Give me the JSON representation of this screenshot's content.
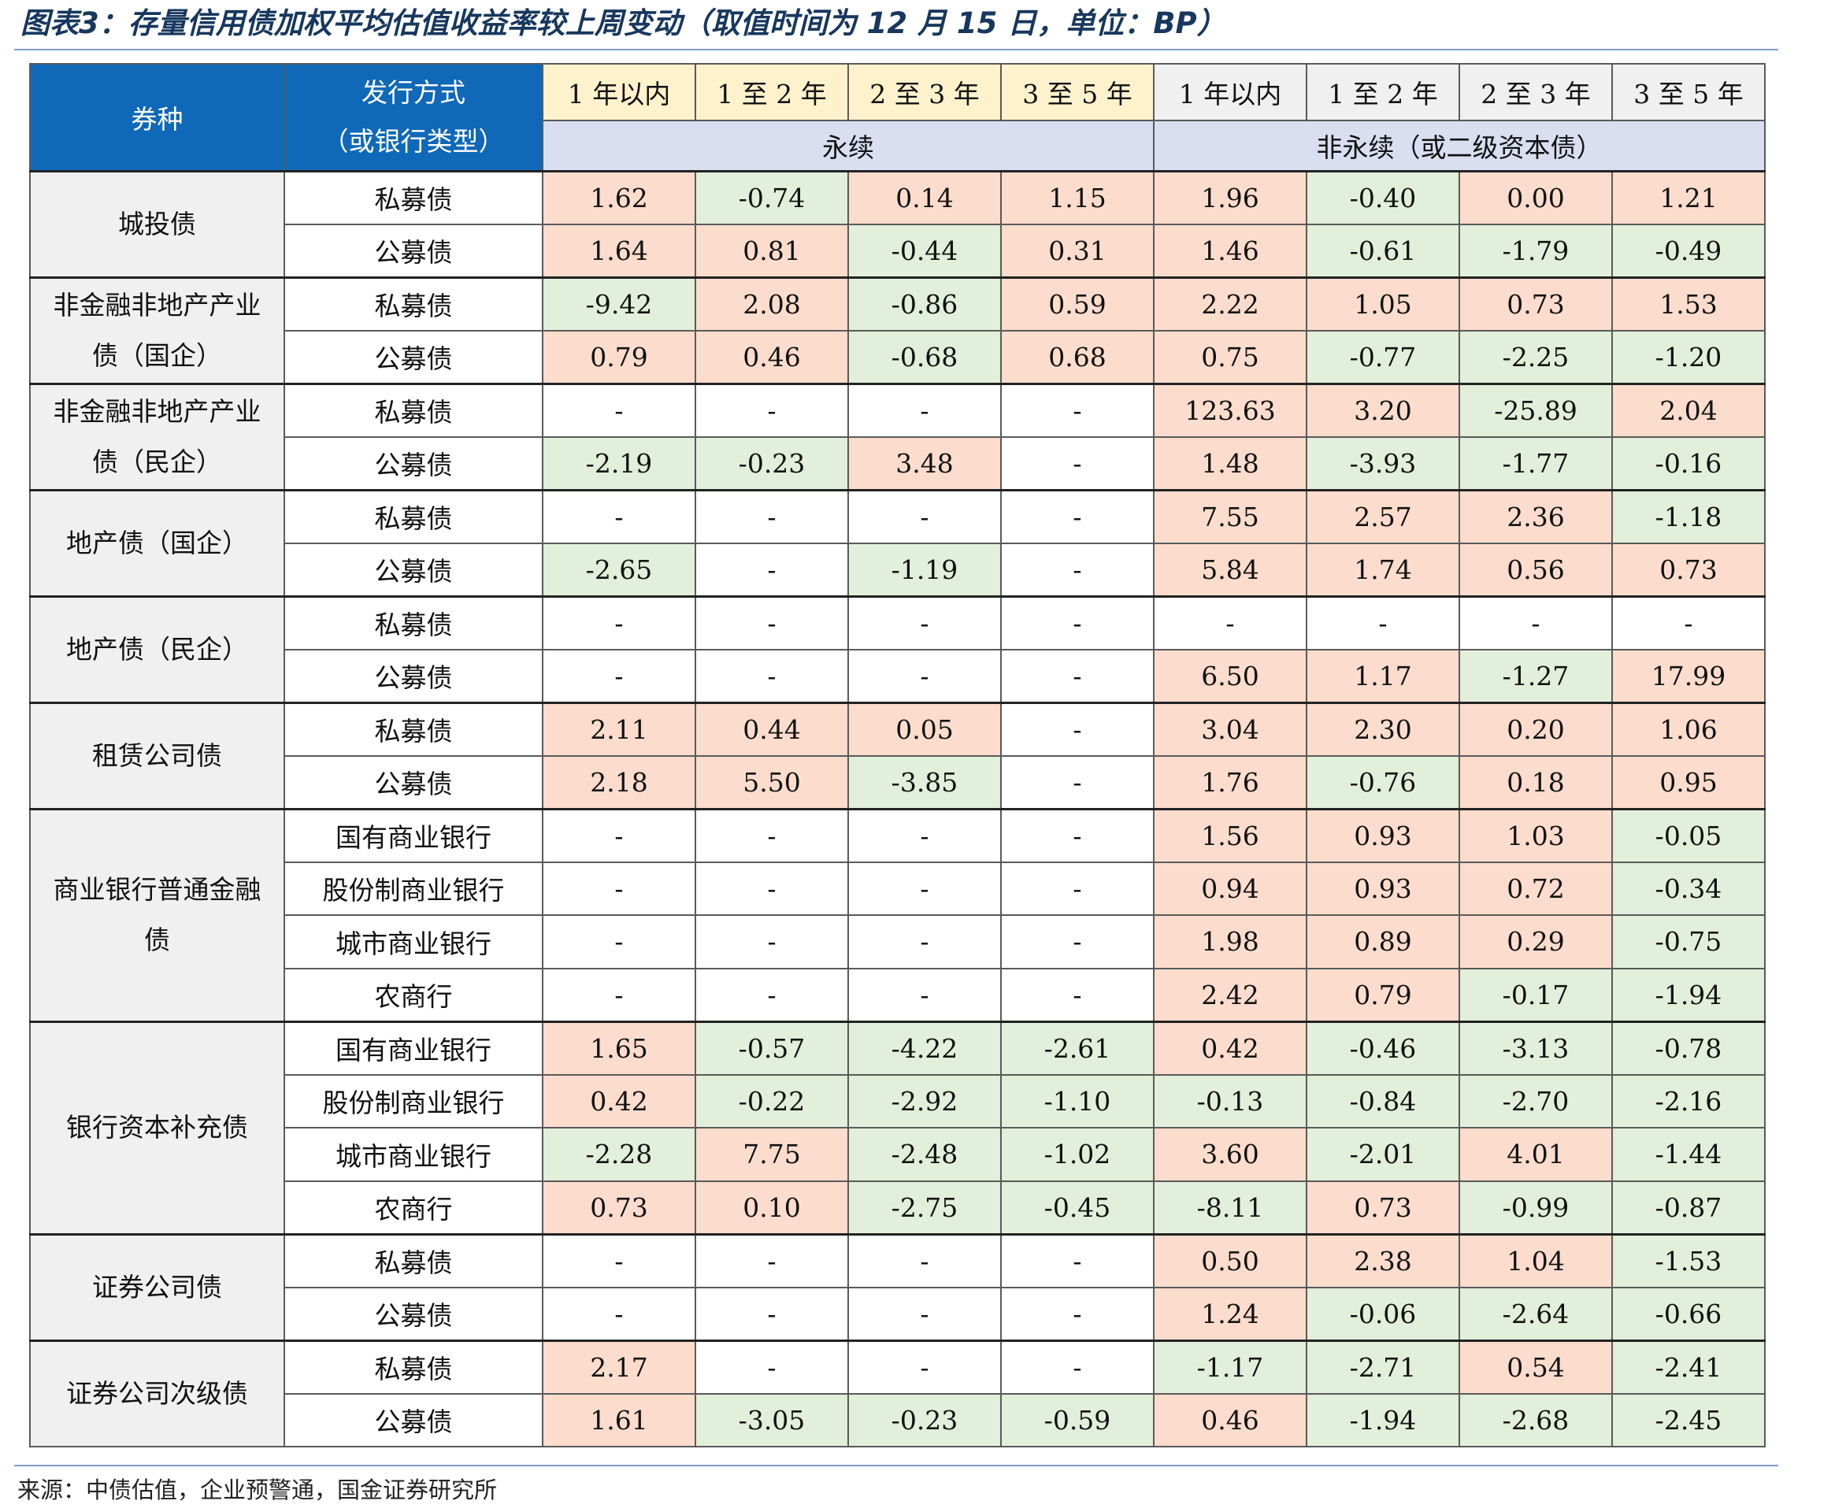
{
  "title": "图表3：存量信用债加权平均估值收益率较上周变动（取值时间为 12 月 15 日，单位：BP）",
  "source": "来源：中债估值，企业预警通，国金证券研究所",
  "header": {
    "category": "券种",
    "issue_line1": "发行方式",
    "issue_line2": "（或银行类型）",
    "terms": [
      "1 年以内",
      "1 至 2 年",
      "2 至 3 年",
      "3 至 5 年",
      "1 年以内",
      "1 至 2 年",
      "2 至 3 年",
      "3 至 5 年"
    ],
    "group_perpetual": "永续",
    "group_nonperpetual": "非永续（或二级资本债）"
  },
  "colors": {
    "header_blue": "#1068b8",
    "positive": "#fbdccd",
    "negative": "#e2efda",
    "title": "#17375e"
  },
  "groups": [
    {
      "name": "城投债",
      "rows": [
        {
          "type": "私募债",
          "values": [
            "1.62",
            "-0.74",
            "0.14",
            "1.15",
            "1.96",
            "-0.40",
            "0.00",
            "1.21"
          ]
        },
        {
          "type": "公募债",
          "values": [
            "1.64",
            "0.81",
            "-0.44",
            "0.31",
            "1.46",
            "-0.61",
            "-1.79",
            "-0.49"
          ]
        }
      ]
    },
    {
      "name": "非金融非地产产业债（国企）",
      "rows": [
        {
          "type": "私募债",
          "values": [
            "-9.42",
            "2.08",
            "-0.86",
            "0.59",
            "2.22",
            "1.05",
            "0.73",
            "1.53"
          ]
        },
        {
          "type": "公募债",
          "values": [
            "0.79",
            "0.46",
            "-0.68",
            "0.68",
            "0.75",
            "-0.77",
            "-2.25",
            "-1.20"
          ]
        }
      ]
    },
    {
      "name": "非金融非地产产业债（民企）",
      "rows": [
        {
          "type": "私募债",
          "values": [
            "-",
            "-",
            "-",
            "-",
            "123.63",
            "3.20",
            "-25.89",
            "2.04"
          ]
        },
        {
          "type": "公募债",
          "values": [
            "-2.19",
            "-0.23",
            "3.48",
            "-",
            "1.48",
            "-3.93",
            "-1.77",
            "-0.16"
          ]
        }
      ]
    },
    {
      "name": "地产债（国企）",
      "rows": [
        {
          "type": "私募债",
          "values": [
            "-",
            "-",
            "-",
            "-",
            "7.55",
            "2.57",
            "2.36",
            "-1.18"
          ]
        },
        {
          "type": "公募债",
          "values": [
            "-2.65",
            "-",
            "-1.19",
            "-",
            "5.84",
            "1.74",
            "0.56",
            "0.73"
          ]
        }
      ]
    },
    {
      "name": "地产债（民企）",
      "rows": [
        {
          "type": "私募债",
          "values": [
            "-",
            "-",
            "-",
            "-",
            "-",
            "-",
            "-",
            "-"
          ]
        },
        {
          "type": "公募债",
          "values": [
            "-",
            "-",
            "-",
            "-",
            "6.50",
            "1.17",
            "-1.27",
            "17.99"
          ]
        }
      ]
    },
    {
      "name": "租赁公司债",
      "rows": [
        {
          "type": "私募债",
          "values": [
            "2.11",
            "0.44",
            "0.05",
            "-",
            "3.04",
            "2.30",
            "0.20",
            "1.06"
          ]
        },
        {
          "type": "公募债",
          "values": [
            "2.18",
            "5.50",
            "-3.85",
            "-",
            "1.76",
            "-0.76",
            "0.18",
            "0.95"
          ]
        }
      ]
    },
    {
      "name": "商业银行普通金融债",
      "rows": [
        {
          "type": "国有商业银行",
          "values": [
            "-",
            "-",
            "-",
            "-",
            "1.56",
            "0.93",
            "1.03",
            "-0.05"
          ]
        },
        {
          "type": "股份制商业银行",
          "values": [
            "-",
            "-",
            "-",
            "-",
            "0.94",
            "0.93",
            "0.72",
            "-0.34"
          ]
        },
        {
          "type": "城市商业银行",
          "values": [
            "-",
            "-",
            "-",
            "-",
            "1.98",
            "0.89",
            "0.29",
            "-0.75"
          ]
        },
        {
          "type": "农商行",
          "values": [
            "-",
            "-",
            "-",
            "-",
            "2.42",
            "0.79",
            "-0.17",
            "-1.94"
          ]
        }
      ]
    },
    {
      "name": "银行资本补充债",
      "rows": [
        {
          "type": "国有商业银行",
          "values": [
            "1.65",
            "-0.57",
            "-4.22",
            "-2.61",
            "0.42",
            "-0.46",
            "-3.13",
            "-0.78"
          ]
        },
        {
          "type": "股份制商业银行",
          "values": [
            "0.42",
            "-0.22",
            "-2.92",
            "-1.10",
            "-0.13",
            "-0.84",
            "-2.70",
            "-2.16"
          ]
        },
        {
          "type": "城市商业银行",
          "values": [
            "-2.28",
            "7.75",
            "-2.48",
            "-1.02",
            "3.60",
            "-2.01",
            "4.01",
            "-1.44"
          ]
        },
        {
          "type": "农商行",
          "values": [
            "0.73",
            "0.10",
            "-2.75",
            "-0.45",
            "-8.11",
            "0.73",
            "-0.99",
            "-0.87"
          ]
        }
      ]
    },
    {
      "name": "证券公司债",
      "rows": [
        {
          "type": "私募债",
          "values": [
            "-",
            "-",
            "-",
            "-",
            "0.50",
            "2.38",
            "1.04",
            "-1.53"
          ]
        },
        {
          "type": "公募债",
          "values": [
            "-",
            "-",
            "-",
            "-",
            "1.24",
            "-0.06",
            "-2.64",
            "-0.66"
          ]
        }
      ]
    },
    {
      "name": "证券公司次级债",
      "rows": [
        {
          "type": "私募债",
          "values": [
            "2.17",
            "-",
            "-",
            "-",
            "-1.17",
            "-2.71",
            "0.54",
            "-2.41"
          ]
        },
        {
          "type": "公募债",
          "values": [
            "1.61",
            "-3.05",
            "-0.23",
            "-0.59",
            "0.46",
            "-1.94",
            "-2.68",
            "-2.45"
          ]
        }
      ]
    }
  ]
}
